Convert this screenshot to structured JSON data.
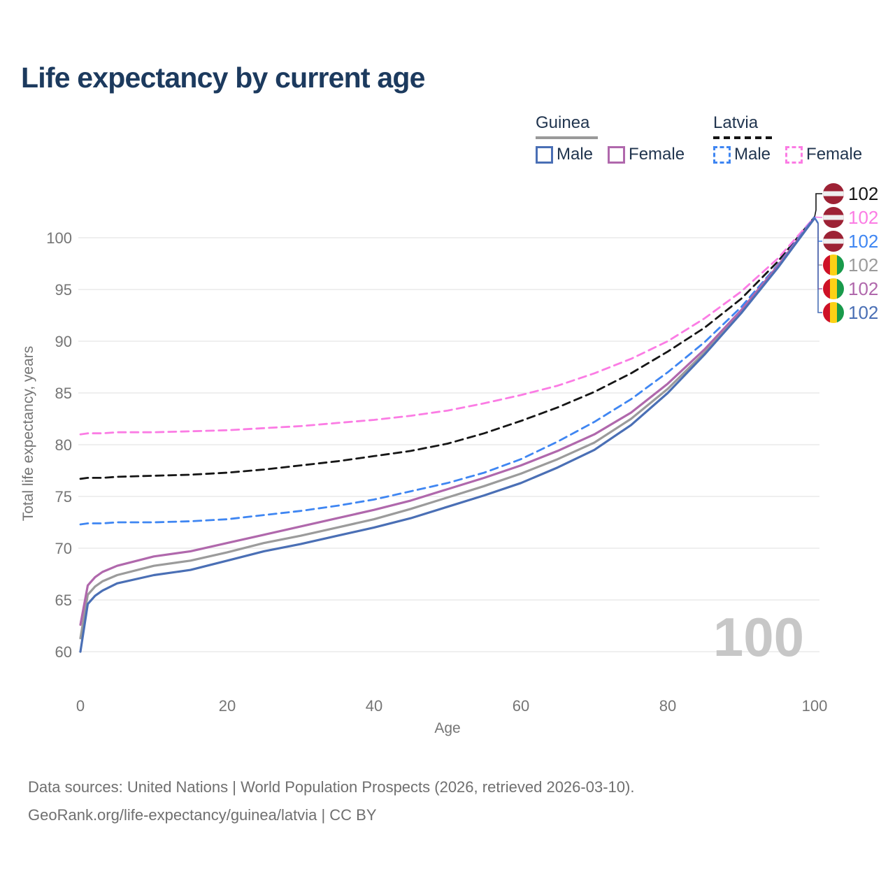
{
  "title": "Life expectancy by current age",
  "watermark_age": "100",
  "legend": {
    "groups": [
      {
        "name": "Guinea",
        "line_style": "solid",
        "underline_color": "#999999",
        "items": [
          {
            "label": "Male",
            "color": "#4a6fb5",
            "dashed": false
          },
          {
            "label": "Female",
            "color": "#b068ac",
            "dashed": false
          }
        ]
      },
      {
        "name": "Latvia",
        "line_style": "dashed",
        "underline_color": "#141414",
        "items": [
          {
            "label": "Male",
            "color": "#3f86f2",
            "dashed": true
          },
          {
            "label": "Female",
            "color": "#fb7ce4",
            "dashed": true
          }
        ]
      }
    ]
  },
  "footer": {
    "line1": "Data sources: United Nations | World Population Prospects (2026, retrieved 2026-03-10).",
    "line2": "GeoRank.org/life-expectancy/guinea/latvia | CC BY"
  },
  "chart_data": {
    "type": "line",
    "title": "Life expectancy by current age",
    "xlabel": "Age",
    "ylabel": "Total life expectancy, years",
    "xlim": [
      0,
      100
    ],
    "ylim": [
      58.5,
      103.5
    ],
    "xticks": [
      0,
      20,
      40,
      60,
      80,
      100
    ],
    "yticks": [
      60,
      65,
      70,
      75,
      80,
      85,
      90,
      95,
      100
    ],
    "grid": "horizontal",
    "legend_position": "top-right",
    "current_age_indicator": "100",
    "x": [
      0,
      1,
      2,
      3,
      5,
      10,
      15,
      20,
      25,
      30,
      35,
      40,
      45,
      50,
      55,
      60,
      65,
      70,
      75,
      80,
      85,
      90,
      95,
      100
    ],
    "series": [
      {
        "id": "latvia-total",
        "name": "Latvia (both sexes)",
        "country": "Latvia",
        "sex": "both",
        "flag": "latvia",
        "color": "#161616",
        "dashed": true,
        "end_label": "102",
        "values": [
          76.7,
          76.8,
          76.8,
          76.8,
          76.9,
          77.0,
          77.1,
          77.3,
          77.6,
          78.0,
          78.4,
          78.9,
          79.4,
          80.1,
          81.1,
          82.3,
          83.6,
          85.1,
          86.9,
          89.0,
          91.3,
          94.1,
          97.7,
          102.0
        ]
      },
      {
        "id": "latvia-female",
        "name": "Latvia Female",
        "country": "Latvia",
        "sex": "female",
        "flag": "latvia",
        "color": "#fb7ce4",
        "dashed": true,
        "end_label": "102",
        "values": [
          81.0,
          81.1,
          81.1,
          81.1,
          81.2,
          81.2,
          81.3,
          81.4,
          81.6,
          81.8,
          82.1,
          82.4,
          82.8,
          83.3,
          84.0,
          84.8,
          85.7,
          86.9,
          88.3,
          90.0,
          92.2,
          94.8,
          98.0,
          102.0
        ]
      },
      {
        "id": "latvia-male",
        "name": "Latvia Male",
        "country": "Latvia",
        "sex": "male",
        "flag": "latvia",
        "color": "#3f86f2",
        "dashed": true,
        "end_label": "102",
        "values": [
          72.3,
          72.4,
          72.4,
          72.4,
          72.5,
          72.5,
          72.6,
          72.8,
          73.2,
          73.6,
          74.1,
          74.7,
          75.5,
          76.3,
          77.3,
          78.6,
          80.3,
          82.2,
          84.4,
          87.0,
          89.9,
          93.3,
          97.4,
          102.0
        ]
      },
      {
        "id": "guinea-total",
        "name": "Guinea (both sexes)",
        "country": "Guinea",
        "sex": "both",
        "flag": "guinea",
        "color": "#9b9b9b",
        "dashed": false,
        "end_label": "102",
        "values": [
          61.3,
          65.5,
          66.3,
          66.8,
          67.4,
          68.3,
          68.8,
          69.6,
          70.5,
          71.2,
          72.0,
          72.8,
          73.8,
          74.9,
          76.0,
          77.2,
          78.6,
          80.2,
          82.5,
          85.4,
          88.9,
          92.8,
          97.2,
          101.9
        ]
      },
      {
        "id": "guinea-female",
        "name": "Guinea Female",
        "country": "Guinea",
        "sex": "female",
        "flag": "guinea",
        "color": "#b068ac",
        "dashed": false,
        "end_label": "102",
        "values": [
          62.6,
          66.4,
          67.2,
          67.7,
          68.3,
          69.2,
          69.7,
          70.5,
          71.3,
          72.1,
          72.9,
          73.7,
          74.6,
          75.7,
          76.8,
          78.0,
          79.4,
          81.0,
          83.1,
          85.9,
          89.2,
          93.0,
          97.3,
          101.9
        ]
      },
      {
        "id": "guinea-male",
        "name": "Guinea Male",
        "country": "Guinea",
        "sex": "male",
        "flag": "guinea",
        "color": "#4a6fb5",
        "dashed": false,
        "end_label": "102",
        "values": [
          60.0,
          64.6,
          65.4,
          65.9,
          66.6,
          67.4,
          67.9,
          68.8,
          69.7,
          70.4,
          71.2,
          72.0,
          72.9,
          74.0,
          75.1,
          76.3,
          77.8,
          79.5,
          81.9,
          85.0,
          88.7,
          92.7,
          97.1,
          101.9
        ]
      }
    ],
    "flag_colors": {
      "latvia": {
        "red": "#9d2235",
        "white": "#efefef"
      },
      "guinea": {
        "red": "#ce1126",
        "yellow": "#fcd116",
        "green": "#199a4b"
      }
    }
  }
}
